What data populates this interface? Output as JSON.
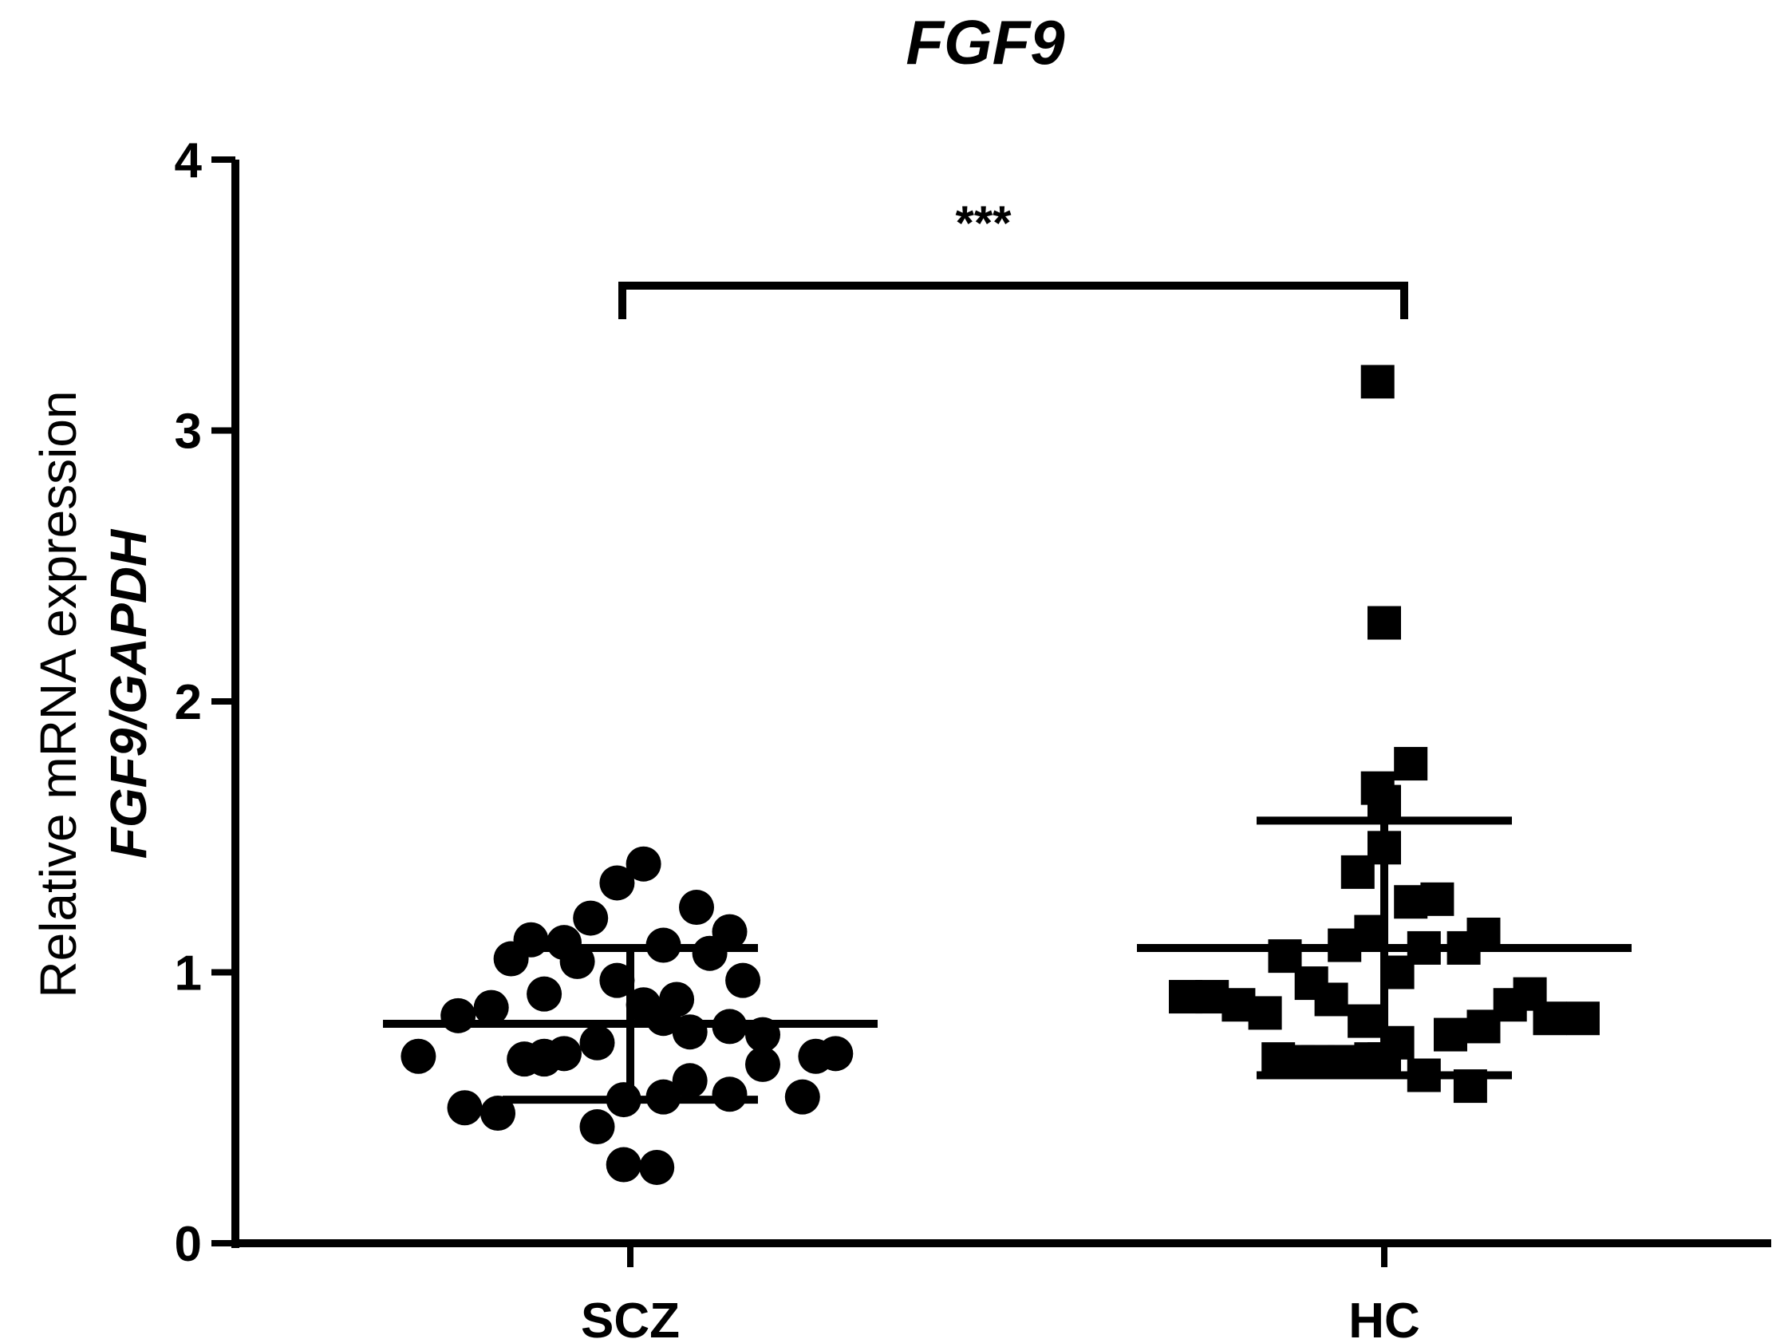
{
  "chart_data": {
    "type": "scatter",
    "title": "FGF9",
    "ylabel_line1": "Relative mRNA expression",
    "ylabel_line2": "FGF9/GAPDH",
    "ylim": [
      0,
      4
    ],
    "yticks": [
      "0",
      "1",
      "2",
      "3",
      "4"
    ],
    "categories": [
      "SCZ",
      "HC"
    ],
    "significance": "***",
    "colors": {
      "points": "#000000",
      "axes": "#000000"
    },
    "series": [
      {
        "name": "SCZ",
        "marker": "circle",
        "mean": 0.81,
        "sd_upper": 1.09,
        "sd_lower": 0.53,
        "points": [
          {
            "dx": -0.32,
            "y": 0.69
          },
          {
            "dx": -0.26,
            "y": 0.84
          },
          {
            "dx": -0.25,
            "y": 0.5
          },
          {
            "dx": -0.21,
            "y": 0.87
          },
          {
            "dx": -0.2,
            "y": 0.48
          },
          {
            "dx": -0.18,
            "y": 1.05
          },
          {
            "dx": -0.15,
            "y": 1.12
          },
          {
            "dx": -0.16,
            "y": 0.68
          },
          {
            "dx": -0.13,
            "y": 0.69
          },
          {
            "dx": -0.13,
            "y": 0.68
          },
          {
            "dx": -0.13,
            "y": 0.92
          },
          {
            "dx": -0.1,
            "y": 1.11
          },
          {
            "dx": -0.1,
            "y": 0.7
          },
          {
            "dx": -0.08,
            "y": 1.04
          },
          {
            "dx": -0.06,
            "y": 1.2
          },
          {
            "dx": -0.05,
            "y": 0.43
          },
          {
            "dx": -0.05,
            "y": 0.74
          },
          {
            "dx": -0.02,
            "y": 0.97
          },
          {
            "dx": -0.02,
            "y": 1.33
          },
          {
            "dx": -0.01,
            "y": 0.53
          },
          {
            "dx": -0.01,
            "y": 0.29
          },
          {
            "dx": 0.02,
            "y": 0.88
          },
          {
            "dx": 0.02,
            "y": 1.4
          },
          {
            "dx": 0.05,
            "y": 0.83
          },
          {
            "dx": 0.04,
            "y": 0.28
          },
          {
            "dx": 0.05,
            "y": 0.54
          },
          {
            "dx": 0.05,
            "y": 1.1
          },
          {
            "dx": 0.07,
            "y": 0.9
          },
          {
            "dx": 0.09,
            "y": 0.78
          },
          {
            "dx": 0.09,
            "y": 0.6
          },
          {
            "dx": 0.1,
            "y": 1.24
          },
          {
            "dx": 0.12,
            "y": 1.07
          },
          {
            "dx": 0.15,
            "y": 0.55
          },
          {
            "dx": 0.15,
            "y": 0.8
          },
          {
            "dx": 0.15,
            "y": 1.15
          },
          {
            "dx": 0.17,
            "y": 0.97
          },
          {
            "dx": 0.2,
            "y": 0.66
          },
          {
            "dx": 0.2,
            "y": 0.77
          },
          {
            "dx": 0.26,
            "y": 0.54
          },
          {
            "dx": 0.28,
            "y": 0.69
          },
          {
            "dx": 0.31,
            "y": 0.7
          }
        ]
      },
      {
        "name": "HC",
        "marker": "square",
        "mean": 1.09,
        "sd_upper": 1.56,
        "sd_lower": 0.62,
        "points": [
          {
            "dx": -0.3,
            "y": 0.91
          },
          {
            "dx": -0.26,
            "y": 0.91
          },
          {
            "dx": -0.22,
            "y": 0.88
          },
          {
            "dx": -0.18,
            "y": 0.85
          },
          {
            "dx": -0.16,
            "y": 0.68
          },
          {
            "dx": -0.15,
            "y": 1.06
          },
          {
            "dx": -0.13,
            "y": 0.67
          },
          {
            "dx": -0.11,
            "y": 0.96
          },
          {
            "dx": -0.1,
            "y": 0.67
          },
          {
            "dx": -0.08,
            "y": 0.9
          },
          {
            "dx": -0.06,
            "y": 0.67
          },
          {
            "dx": -0.06,
            "y": 1.1
          },
          {
            "dx": -0.04,
            "y": 1.37
          },
          {
            "dx": -0.03,
            "y": 0.82
          },
          {
            "dx": -0.02,
            "y": 0.68
          },
          {
            "dx": -0.02,
            "y": 1.15
          },
          {
            "dx": -0.01,
            "y": 1.68
          },
          {
            "dx": -0.01,
            "y": 3.18
          },
          {
            "dx": 0,
            "y": 2.29
          },
          {
            "dx": 0.0,
            "y": 1.46
          },
          {
            "dx": 0.0,
            "y": 1.63
          },
          {
            "dx": 0.0,
            "y": 0.68
          },
          {
            "dx": 0.02,
            "y": 0.74
          },
          {
            "dx": 0.02,
            "y": 1.0
          },
          {
            "dx": 0.04,
            "y": 1.26
          },
          {
            "dx": 0.04,
            "y": 1.77
          },
          {
            "dx": 0.06,
            "y": 0.62
          },
          {
            "dx": 0.06,
            "y": 1.09
          },
          {
            "dx": 0.08,
            "y": 1.27
          },
          {
            "dx": 0.1,
            "y": 0.77
          },
          {
            "dx": 0.12,
            "y": 1.09
          },
          {
            "dx": 0.13,
            "y": 0.58
          },
          {
            "dx": 0.15,
            "y": 0.8
          },
          {
            "dx": 0.15,
            "y": 1.14
          },
          {
            "dx": 0.19,
            "y": 0.88
          },
          {
            "dx": 0.22,
            "y": 0.92
          },
          {
            "dx": 0.25,
            "y": 0.83
          },
          {
            "dx": 0.3,
            "y": 0.83
          }
        ]
      }
    ]
  }
}
